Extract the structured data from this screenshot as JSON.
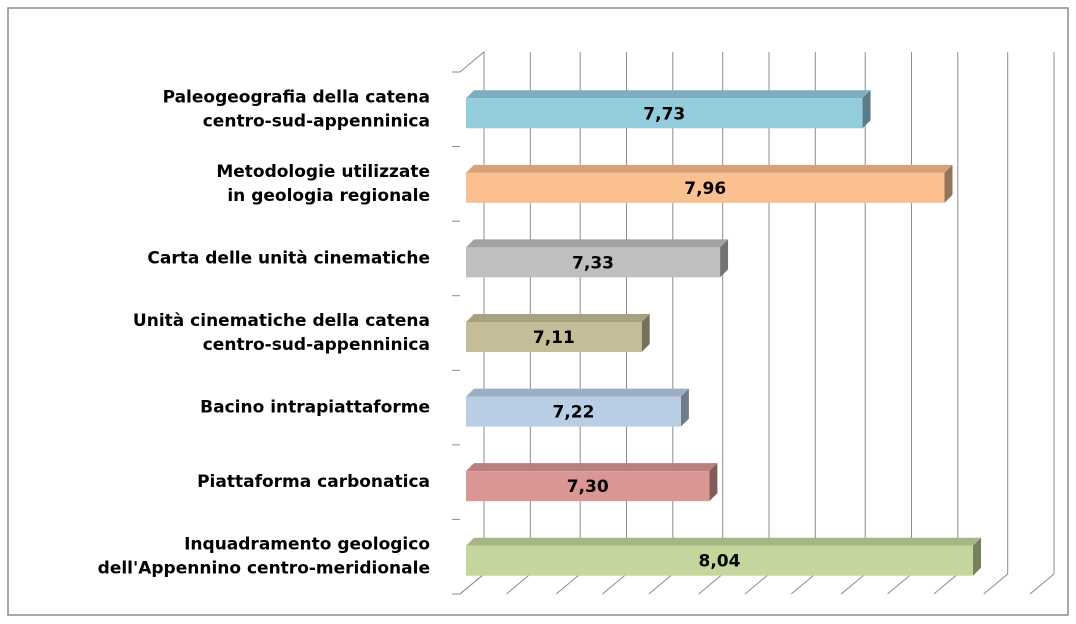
{
  "chart_data": {
    "type": "bar3d_horizontal",
    "categories": [
      [
        "Paleogeografia della catena",
        "centro-sud-appenninica"
      ],
      [
        "Metodologie utilizzate",
        "in geologia regionale"
      ],
      [
        "Carta delle unità cinematiche"
      ],
      [
        "Unità cinematiche della catena",
        "centro-sud-appenninica"
      ],
      [
        "Bacino intrapiattaforme"
      ],
      [
        "Piattaforma carbonatica"
      ],
      [
        "Inquadramento geologico",
        "dell'Appennino centro-meridionale"
      ]
    ],
    "values": [
      7.73,
      7.96,
      7.33,
      7.11,
      7.22,
      7.3,
      8.04
    ],
    "value_labels": [
      "7,73",
      "7,96",
      "7,33",
      "7,11",
      "7,22",
      "7,30",
      "8,04"
    ],
    "colors": [
      "#93cddd",
      "#fac090",
      "#bfbfbf",
      "#c4bd97",
      "#b9cde5",
      "#d99694",
      "#c3d69b"
    ],
    "xlim": [
      6.6,
      8.2
    ],
    "xticks": [
      6.6,
      6.73,
      6.87,
      7.0,
      7.13,
      7.27,
      7.4,
      7.53,
      7.67,
      7.8,
      7.93,
      8.07,
      8.2
    ],
    "grid": true
  }
}
